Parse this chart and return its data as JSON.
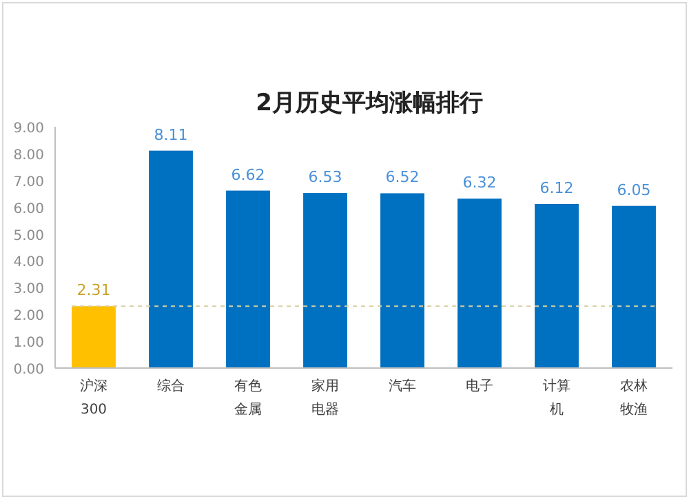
{
  "chart_data": {
    "type": "bar",
    "title": "2月历史平均涨幅排行",
    "categories": [
      "沪深300",
      "综合",
      "有色金属",
      "家用电器",
      "汽车",
      "电子",
      "计算机",
      "农林牧渔"
    ],
    "values": [
      2.31,
      8.11,
      6.62,
      6.53,
      6.52,
      6.32,
      6.12,
      6.05
    ],
    "colors": [
      "#ffc000",
      "#0070c0",
      "#0070c0",
      "#0070c0",
      "#0070c0",
      "#0070c0",
      "#0070c0",
      "#0070c0"
    ],
    "ylim": [
      0,
      9
    ],
    "yticks": [
      {
        "value": 0,
        "label": "0.00"
      },
      {
        "value": 1,
        "label": "1.00"
      },
      {
        "value": 2,
        "label": "2.00"
      },
      {
        "value": 3,
        "label": "3.00"
      },
      {
        "value": 4,
        "label": "4.00"
      },
      {
        "value": 5,
        "label": "5.00"
      },
      {
        "value": 6,
        "label": "6.00"
      },
      {
        "value": 7,
        "label": "7.00"
      },
      {
        "value": 8,
        "label": "8.00"
      },
      {
        "value": 9,
        "label": "9.00"
      }
    ],
    "ref_lines": [
      {
        "axis": "y",
        "value": 2.31,
        "color": "#d8cfa0",
        "line_style": "dashed"
      }
    ],
    "data_labels": true,
    "grid": false
  }
}
